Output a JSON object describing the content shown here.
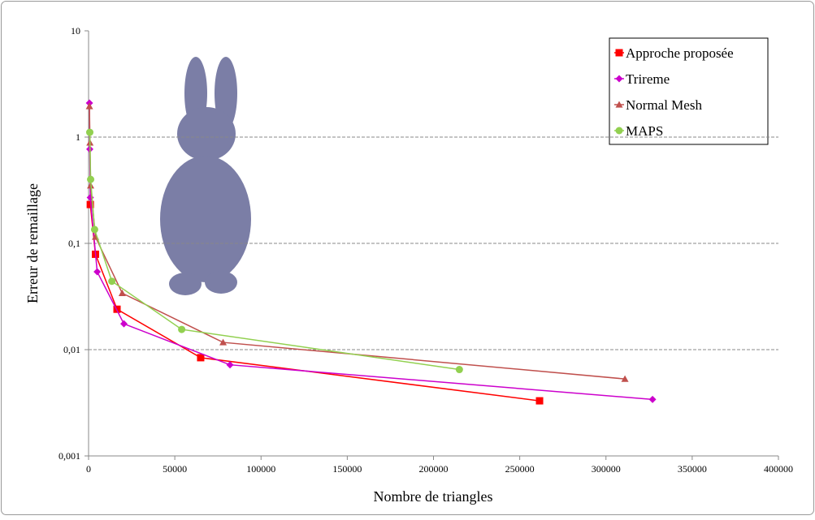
{
  "chart_data": {
    "type": "line",
    "y_label": "Erreur de remaillage",
    "x_label": "Nombre de triangles",
    "log_y": true,
    "grid": true,
    "legend": "top-right",
    "xlim": [
      0,
      400000
    ],
    "xticks": [
      0,
      50000,
      100000,
      150000,
      200000,
      250000,
      300000,
      350000,
      400000
    ],
    "ylim": [
      0.001,
      10
    ],
    "yticks": [
      {
        "value": 0.001,
        "label": "0,001"
      },
      {
        "value": 0.01,
        "label": "0,01"
      },
      {
        "value": 0.1,
        "label": "0,1"
      },
      1,
      10
    ],
    "series": [
      {
        "name": "Approche proposée",
        "color": "#ff0000",
        "marker": "square",
        "x": [
          1000,
          4000,
          16500,
          65000,
          261500
        ],
        "values": [
          0.232,
          0.079,
          0.024,
          0.0084,
          0.0033
        ]
      },
      {
        "name": "Trireme",
        "color": "#cc00cc",
        "marker": "diamond",
        "x": [
          500,
          700,
          1000,
          5000,
          20500,
          82000,
          327000
        ],
        "values": [
          2.09,
          0.77,
          0.27,
          0.054,
          0.0175,
          0.0072,
          0.0034
        ]
      },
      {
        "name": "Normal Mesh",
        "color": "#c0504d",
        "marker": "triangle",
        "x": [
          500,
          800,
          1200,
          4000,
          19500,
          78000,
          311000
        ],
        "values": [
          1.95,
          0.885,
          0.35,
          0.115,
          0.034,
          0.0117,
          0.0053
        ]
      },
      {
        "name": "MAPS",
        "color": "#92d050",
        "marker": "circle",
        "x": [
          700,
          1200,
          3500,
          13500,
          54000,
          215000
        ],
        "values": [
          1.11,
          0.4,
          0.135,
          0.044,
          0.0155,
          0.0065
        ]
      }
    ]
  }
}
